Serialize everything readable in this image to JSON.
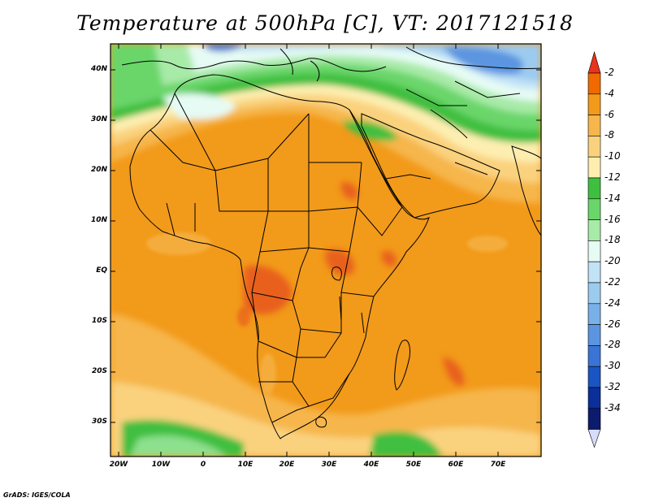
{
  "title": "Temperature at 500hPa [C], VT: 2017121518",
  "credit": "GrADS: IGES/COLA",
  "map": {
    "variable": "Temperature",
    "level": "500hPa",
    "units": "C",
    "valid_time": "2017121518",
    "lon_range": [
      -22,
      80
    ],
    "lat_range": [
      -37,
      45
    ],
    "lat_ticks": [
      "40N",
      "30N",
      "20N",
      "10N",
      "EQ",
      "10S",
      "20S",
      "30S"
    ],
    "lon_ticks": [
      "20W",
      "10W",
      "0",
      "10E",
      "20E",
      "30E",
      "40E",
      "50E",
      "60E",
      "70E"
    ]
  },
  "colorbar": {
    "labels": [
      "-2",
      "-4",
      "-6",
      "-8",
      "-10",
      "-12",
      "-14",
      "-16",
      "-18",
      "-20",
      "-22",
      "-24",
      "-26",
      "-28",
      "-30",
      "-32",
      "-34"
    ],
    "colors": [
      "#ee3320",
      "#f06a00",
      "#f29a1a",
      "#f6b64c",
      "#fad27e",
      "#fdeeb0",
      "#3fbf3f",
      "#6ad66a",
      "#a8eaa8",
      "#e6fbf4",
      "#c2e2f6",
      "#9ccbf0",
      "#78b0e8",
      "#5b95e0",
      "#3a74d6",
      "#1b55c4",
      "#0a2f9a",
      "#0d1b6e"
    ],
    "top_arrow_color": "#e8341c",
    "bottom_arrow_color": "#d9dcf8"
  },
  "colors": {
    "hot": "#e8611c",
    "warm": "#f29a1a",
    "mild": "#f6b64c",
    "cool": "#fad27e",
    "pale": "#fdeeb0",
    "green": "#3fbf3f",
    "light_green": "#8de08d",
    "cyan": "#e6fbf4",
    "blue": "#9ccbf0",
    "dark_blue": "#3a74d6"
  }
}
